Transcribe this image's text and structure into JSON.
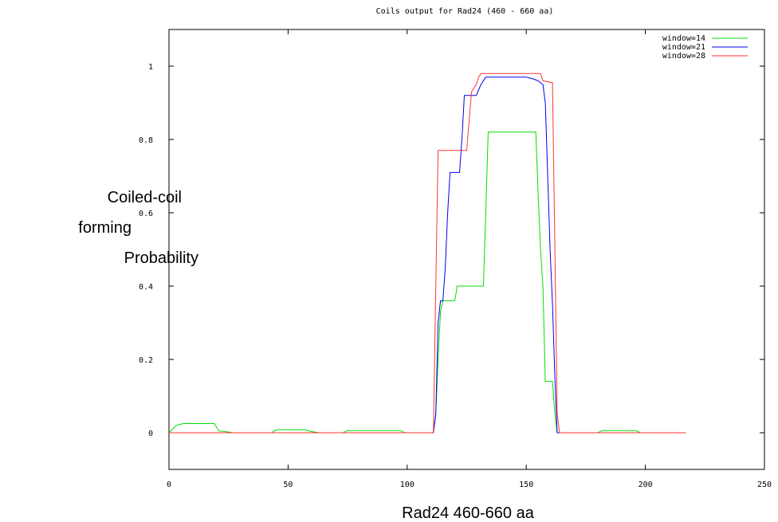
{
  "chart_data": {
    "type": "line",
    "title": "Coils output for Rad24 (460 - 660 aa)",
    "xlabel": "Rad24 460-660 aa",
    "ylabel": [
      "Coiled-coil",
      "forming",
      "Probability"
    ],
    "xlim": [
      0,
      250
    ],
    "ylim": [
      -0.1,
      1.1
    ],
    "x_ticks": [
      0,
      50,
      100,
      150,
      200,
      250
    ],
    "y_ticks": [
      0,
      0.2,
      0.4,
      0.6,
      0.8,
      1
    ],
    "x_tick_labels": [
      "0",
      "50",
      "100",
      "150",
      "200",
      "250"
    ],
    "y_tick_labels": [
      "0",
      "0.2",
      "0.4",
      "0.6",
      "0.8",
      "1"
    ],
    "grid": false,
    "legend_position": "top-right",
    "series": [
      {
        "name": "window=14",
        "color": "#00dd00",
        "points": [
          [
            0,
            0
          ],
          [
            3,
            0.02
          ],
          [
            6,
            0.025
          ],
          [
            19,
            0.025
          ],
          [
            21,
            0.005
          ],
          [
            25,
            0.002
          ],
          [
            27,
            0
          ],
          [
            43,
            0
          ],
          [
            45,
            0.008
          ],
          [
            57,
            0.008
          ],
          [
            60,
            0.003
          ],
          [
            63,
            0
          ],
          [
            73,
            0
          ],
          [
            75,
            0.006
          ],
          [
            97,
            0.006
          ],
          [
            99,
            0
          ],
          [
            110,
            0
          ],
          [
            111,
            0.002
          ],
          [
            112,
            0.05
          ],
          [
            113,
            0.2
          ],
          [
            114,
            0.33
          ],
          [
            115,
            0.36
          ],
          [
            120,
            0.36
          ],
          [
            121,
            0.4
          ],
          [
            132,
            0.4
          ],
          [
            133,
            0.6
          ],
          [
            134,
            0.82
          ],
          [
            154,
            0.82
          ],
          [
            155,
            0.65
          ],
          [
            156,
            0.5
          ],
          [
            157,
            0.4
          ],
          [
            158,
            0.14
          ],
          [
            161,
            0.14
          ],
          [
            162,
            0.05
          ],
          [
            163,
            0
          ],
          [
            180,
            0
          ],
          [
            182,
            0.006
          ],
          [
            196,
            0.006
          ],
          [
            198,
            0
          ],
          [
            217,
            0
          ]
        ]
      },
      {
        "name": "window=21",
        "color": "#0000ee",
        "points": [
          [
            0,
            0
          ],
          [
            111,
            0
          ],
          [
            112,
            0.05
          ],
          [
            113,
            0.3
          ],
          [
            114,
            0.36
          ],
          [
            115,
            0.36
          ],
          [
            116,
            0.45
          ],
          [
            117,
            0.6
          ],
          [
            118,
            0.71
          ],
          [
            122,
            0.71
          ],
          [
            123,
            0.8
          ],
          [
            124,
            0.92
          ],
          [
            129,
            0.92
          ],
          [
            130,
            0.935
          ],
          [
            131,
            0.95
          ],
          [
            133,
            0.97
          ],
          [
            150,
            0.97
          ],
          [
            153,
            0.965
          ],
          [
            155,
            0.96
          ],
          [
            157,
            0.95
          ],
          [
            158,
            0.9
          ],
          [
            159,
            0.7
          ],
          [
            160,
            0.5
          ],
          [
            161,
            0.35
          ],
          [
            162,
            0.15
          ],
          [
            163,
            0
          ],
          [
            217,
            0
          ]
        ]
      },
      {
        "name": "window=28",
        "color": "#ff3333",
        "points": [
          [
            0,
            0
          ],
          [
            111,
            0
          ],
          [
            112,
            0.4
          ],
          [
            113,
            0.77
          ],
          [
            125,
            0.77
          ],
          [
            126,
            0.85
          ],
          [
            127,
            0.93
          ],
          [
            129,
            0.95
          ],
          [
            130,
            0.97
          ],
          [
            131,
            0.98
          ],
          [
            156,
            0.98
          ],
          [
            157,
            0.96
          ],
          [
            161,
            0.955
          ],
          [
            162,
            0.5
          ],
          [
            163,
            0.05
          ],
          [
            164,
            0
          ],
          [
            217,
            0
          ]
        ]
      }
    ]
  }
}
